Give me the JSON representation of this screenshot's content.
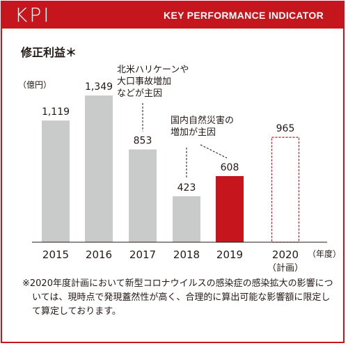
{
  "header": {
    "kpi": "KPI",
    "subtitle": "KEY PERFORMANCE INDICATOR"
  },
  "colors": {
    "brand": "#c4161c",
    "bar_gray": "#c9caca",
    "bar_highlight": "#c4161c"
  },
  "chart_data": {
    "type": "bar",
    "title": "修正利益＊",
    "ylabel": "（億円）",
    "xlabel": "（年度）",
    "categories": [
      "2015",
      "2016",
      "2017",
      "2018",
      "2019",
      "2020\n（計画）"
    ],
    "values": [
      1119,
      1349,
      853,
      423,
      608,
      965
    ],
    "value_labels": [
      "1,119",
      "1,349",
      "853",
      "423",
      "608",
      "965"
    ],
    "styles": [
      "gray",
      "gray",
      "gray",
      "gray",
      "highlight",
      "plan-outline"
    ],
    "ylim": [
      0,
      1600
    ],
    "grid": false,
    "annotations": [
      {
        "text": "北米ハリケーンや\n大口事故増加\nなどが主因",
        "target": "2017"
      },
      {
        "text": "国内自然災害の\n増加が主因",
        "targets": [
          "2018",
          "2019"
        ]
      }
    ]
  },
  "footnote": "※2020年度計画において新型コロナウイルスの感染症の感染拡大の影響については、現時点で発現蓋然性が高く、合理的に算出可能な影響額に限定して算定しております。"
}
